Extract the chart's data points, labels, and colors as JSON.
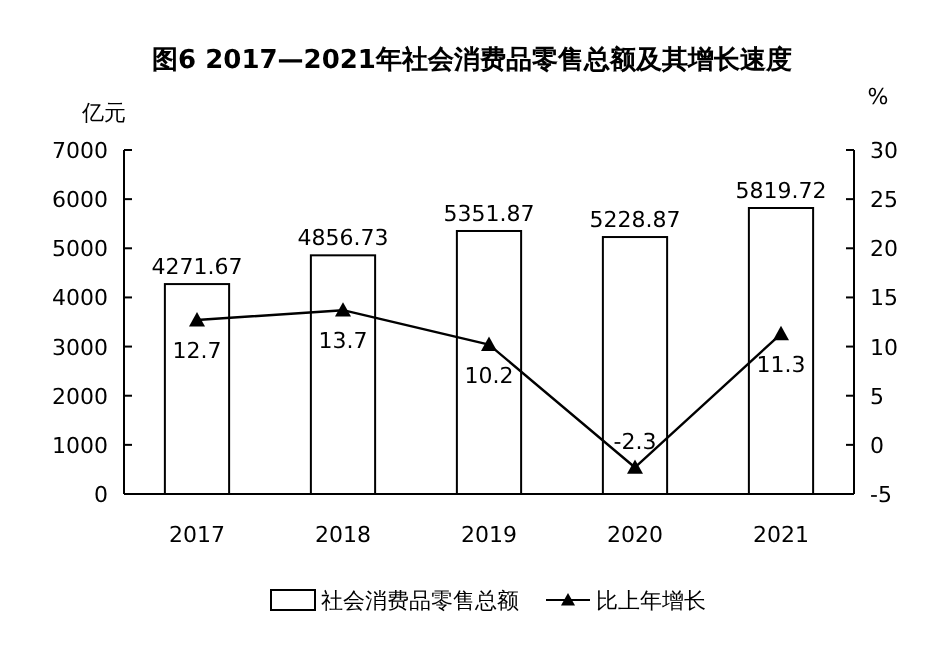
{
  "chart_data": {
    "type": "bar",
    "title": "图6 2017—2021年社会消费品零售总额及其增长速度",
    "ylabel": "亿元",
    "y2label": "%",
    "categories": [
      "2017",
      "2018",
      "2019",
      "2020",
      "2021"
    ],
    "series": [
      {
        "name": "社会消费品零售总额",
        "color": "#ffffff",
        "values": [
          4271.67,
          4856.73,
          5351.87,
          5228.87,
          5819.72
        ]
      },
      {
        "name": "比上年增长",
        "type": "line",
        "axis": "y2",
        "color": "#000000",
        "marker": "triangle",
        "values": [
          12.7,
          13.7,
          10.2,
          -2.3,
          11.3
        ]
      }
    ],
    "ylim": [
      0,
      7000
    ],
    "yticks": [
      0,
      1000,
      2000,
      3000,
      4000,
      5000,
      6000,
      7000
    ],
    "y2lim": [
      -5,
      30
    ],
    "y2ticks": [
      -5,
      0,
      5,
      10,
      15,
      20,
      25,
      30
    ],
    "data_labels": true,
    "legend": "bottom"
  }
}
